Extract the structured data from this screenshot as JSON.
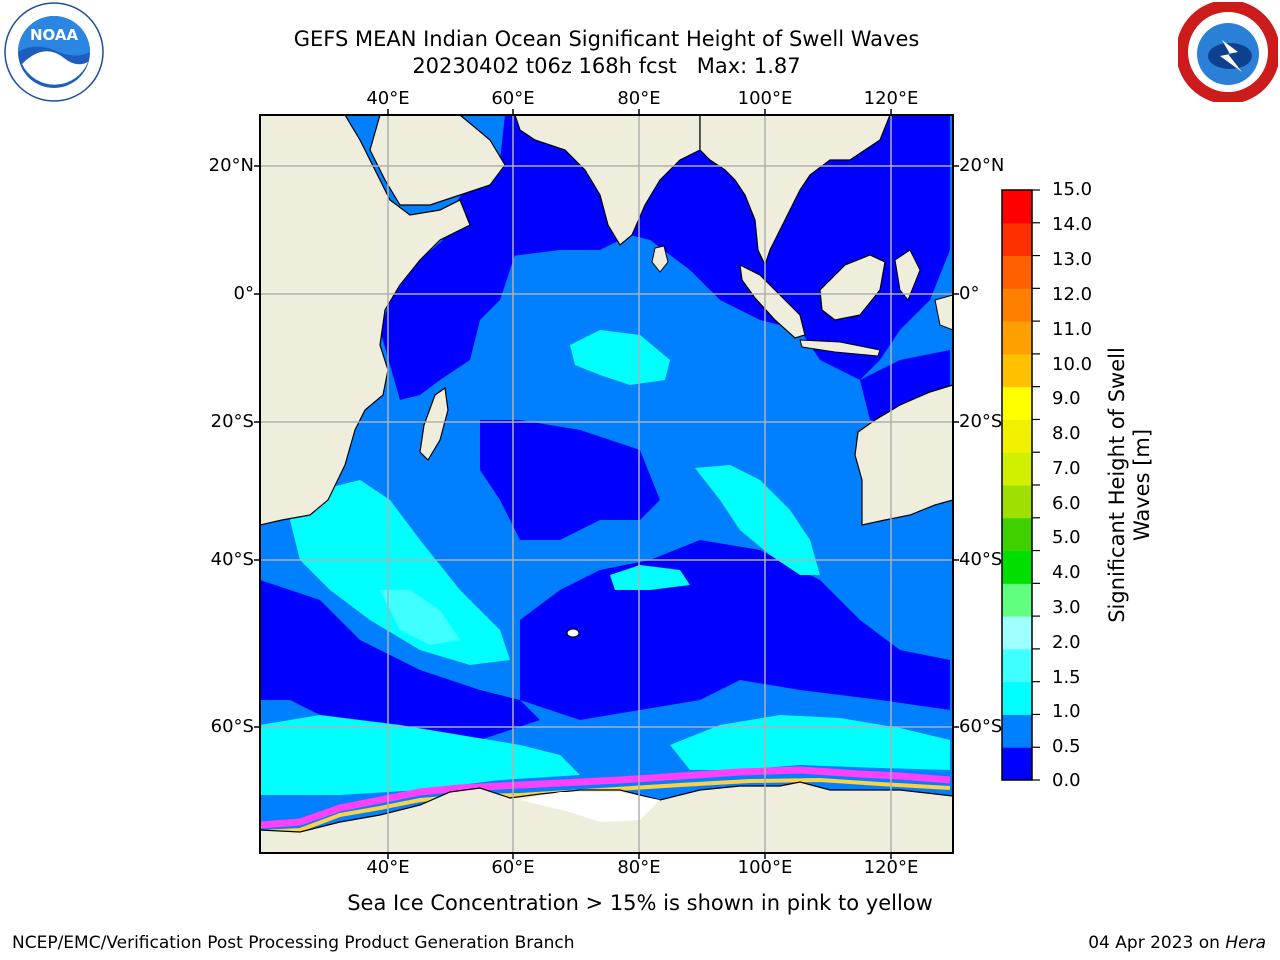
{
  "title_line1": "GEFS MEAN Indian Ocean Significant Height of Swell Waves",
  "title_line2": "20230402 t06z 168h fcst   Max: 1.87",
  "lon_labels": [
    "40°E",
    "60°E",
    "80°E",
    "100°E",
    "120°E"
  ],
  "lat_labels": [
    "20°N",
    "0°",
    "20°S",
    "40°S",
    "60°S"
  ],
  "colorbar": {
    "title_line1": "Significant Height of Swell",
    "title_line2": "Waves [m]",
    "ticks": [
      "15.0",
      "14.0",
      "13.0",
      "12.0",
      "11.0",
      "10.0",
      "9.0",
      "8.0",
      "7.0",
      "6.0",
      "5.0",
      "4.0",
      "3.0",
      "2.0",
      "1.5",
      "1.0",
      "0.5",
      "0.0"
    ],
    "colors": [
      "#0000ff",
      "#0080ff",
      "#00ffff",
      "#40ffff",
      "#a0ffff",
      "#60ff80",
      "#00e000",
      "#40d000",
      "#a0e000",
      "#d0f000",
      "#f0f000",
      "#ffff00",
      "#ffc000",
      "#ffa000",
      "#ff8000",
      "#ff6000",
      "#ff3000",
      "#ff0000"
    ]
  },
  "colors": {
    "land": "#efeedc",
    "ice_free_shelf": "#ffffff",
    "ocean_low": "#0000ff",
    "ocean_mid": "#0080ff",
    "ocean_high": "#00ffff",
    "ocean_higher": "#40ffff",
    "ice_pink": "#ff40ff",
    "ice_yellow": "#ffd040"
  },
  "icons": {
    "left_logo": "noaa-logo",
    "right_logo": "national-weather-service-logo"
  },
  "footer": {
    "ice_note": "Sea Ice Concentration > 15% is shown in pink to yellow",
    "credit": "NCEP/EMC/Verification Post Processing Product Generation Branch",
    "date_prefix": "04 Apr 2023 on",
    "machine": "Hera"
  }
}
